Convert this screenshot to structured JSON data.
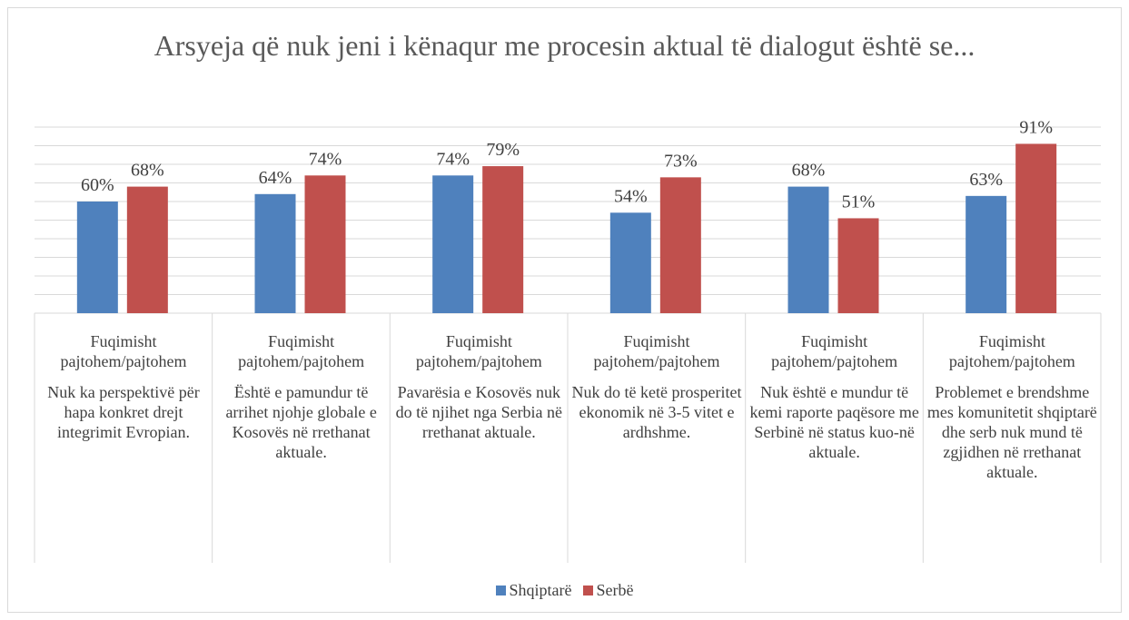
{
  "chart_data": {
    "type": "bar",
    "title": "Arsyeja që nuk jeni i kënaqur me procesin aktual të dialogut është se...",
    "categories": [
      [
        "Fuqimisht pajtohem/pajtohem",
        "Nuk ka perspektivë për hapa konkret drejt integrimit Evropian."
      ],
      [
        "Fuqimisht pajtohem/pajtohem",
        "Është e pamundur të arrihet njohje globale e Kosovës në rrethanat aktuale."
      ],
      [
        "Fuqimisht pajtohem/pajtohem",
        "Pavarësia e Kosovës nuk do të njihet nga Serbia në rrethanat aktuale."
      ],
      [
        "Fuqimisht pajtohem/pajtohem",
        "Nuk do të ketë prosperitet ekonomik në 3-5 vitet e ardhshme."
      ],
      [
        "Fuqimisht pajtohem/pajtohem",
        "Nuk është e mundur të kemi raporte paqësore me Serbinë në status kuo-në aktuale."
      ],
      [
        "Fuqimisht pajtohem/pajtohem",
        "Problemet e brendshme mes komunitetit shqiptarë dhe serb nuk mund të zgjidhen në rrethanat aktuale."
      ]
    ],
    "series": [
      {
        "name": "Shqiptarë",
        "color": "#4f81bd",
        "values": [
          60,
          64,
          74,
          54,
          68,
          63
        ],
        "value_labels": [
          "60%",
          "64%",
          "74%",
          "54%",
          "68%",
          "63%"
        ]
      },
      {
        "name": "Serbë",
        "color": "#c0504d",
        "values": [
          68,
          74,
          79,
          73,
          51,
          91
        ],
        "value_labels": [
          "68%",
          "74%",
          "79%",
          "73%",
          "51%",
          "91%"
        ]
      }
    ],
    "ylim": [
      0,
      100
    ],
    "yticks": [
      0,
      10,
      20,
      30,
      40,
      50,
      60,
      70,
      80,
      90,
      100
    ],
    "grid": true,
    "legend": "bottom"
  }
}
